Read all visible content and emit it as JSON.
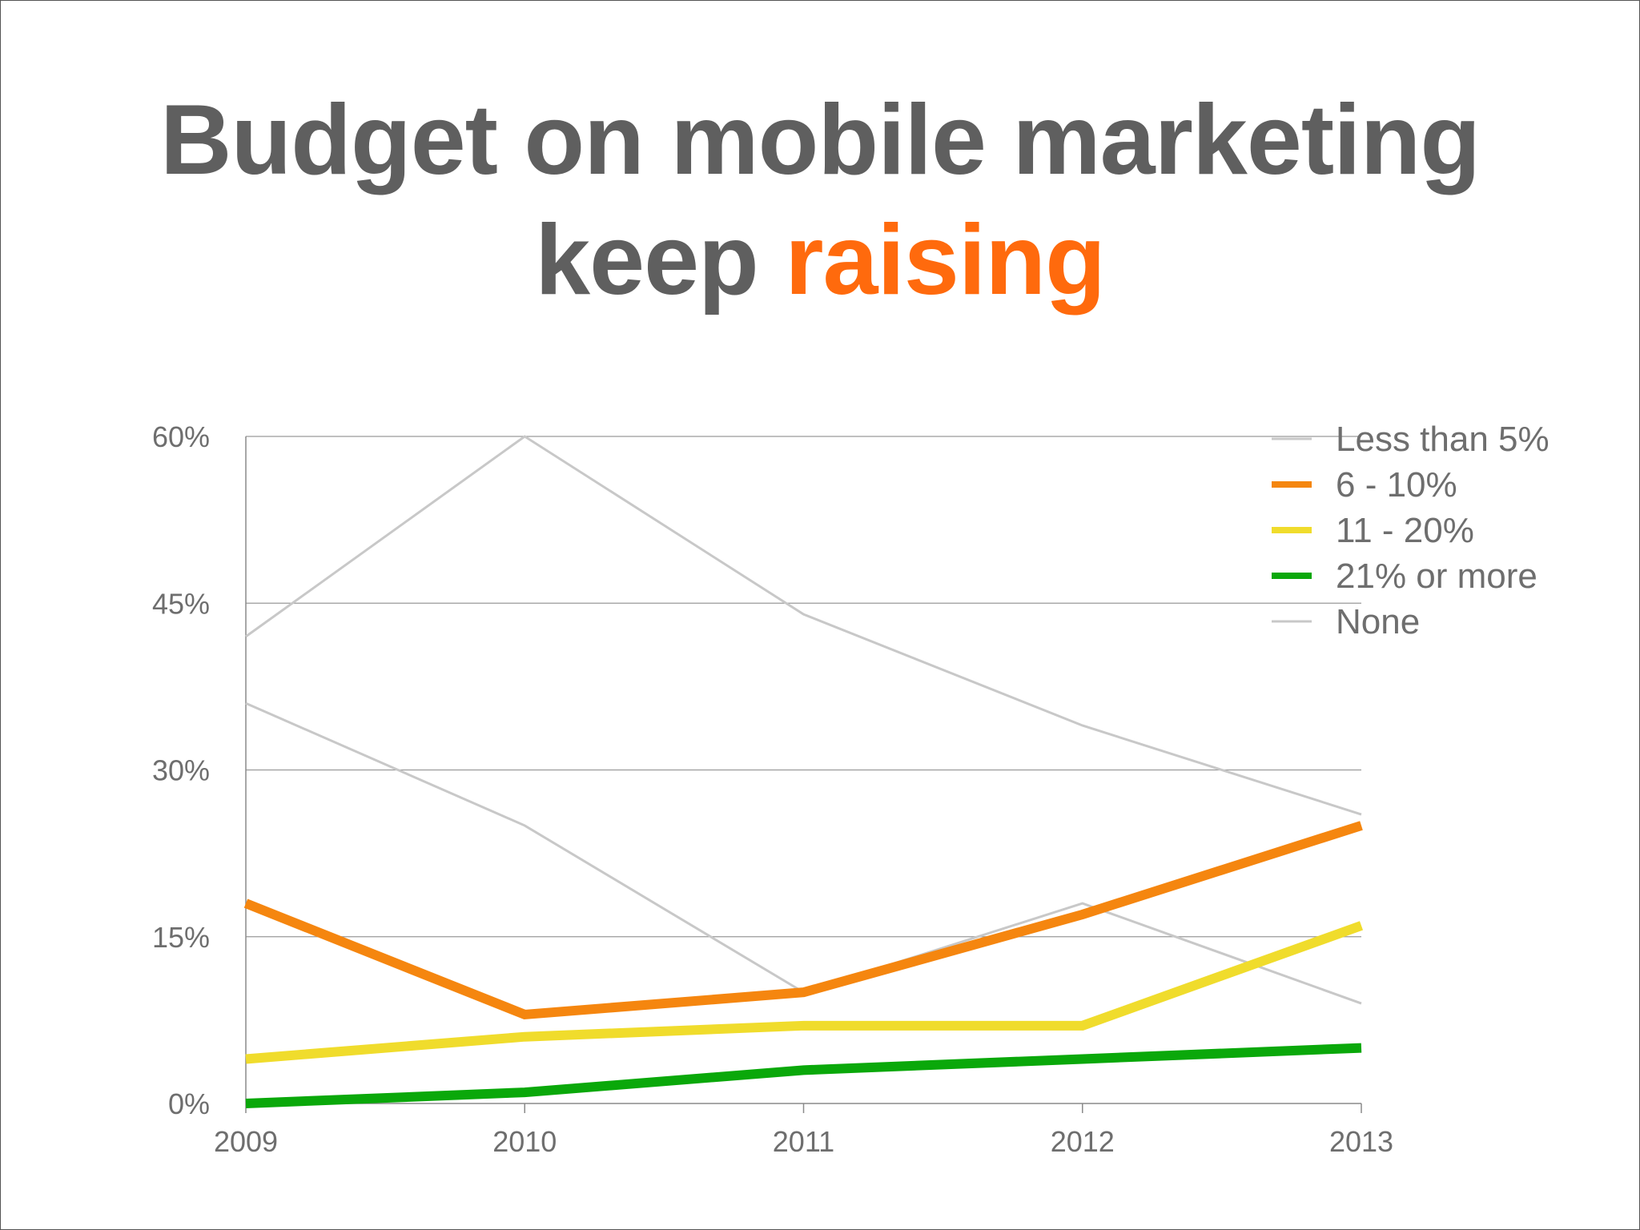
{
  "title": {
    "line1": "Budget on mobile marketing",
    "line2_plain": "keep",
    "line2_accent": "raising"
  },
  "colors": {
    "title": "#5f5f5f",
    "accent": "#ff6a0d",
    "grid": "#9a9a9a",
    "axis_text": "#6e6e6e"
  },
  "chart_data": {
    "type": "line",
    "x": [
      "2009",
      "2010",
      "2011",
      "2012",
      "2013"
    ],
    "ylim": [
      0,
      60
    ],
    "yticks": [
      "0%",
      "15%",
      "30%",
      "45%",
      "60%"
    ],
    "grid": true,
    "legend_position": "top-right",
    "series": [
      {
        "name": "Less than 5%",
        "values": [
          42,
          60,
          44,
          34,
          26
        ],
        "color": "#c8c8c8",
        "weight": "thin"
      },
      {
        "name": "6 - 10%",
        "values": [
          18,
          8,
          10,
          17,
          25
        ],
        "color": "#f5860f",
        "weight": "thick"
      },
      {
        "name": "11 - 20%",
        "values": [
          4,
          6,
          7,
          7,
          16
        ],
        "color": "#f0dc2c",
        "weight": "thick"
      },
      {
        "name": "21% or more",
        "values": [
          0,
          1,
          3,
          4,
          5
        ],
        "color": "#0aa80a",
        "weight": "thick"
      },
      {
        "name": "None",
        "values": [
          36,
          25,
          10,
          18,
          9
        ],
        "color": "#c8c8c8",
        "weight": "thin"
      }
    ]
  }
}
